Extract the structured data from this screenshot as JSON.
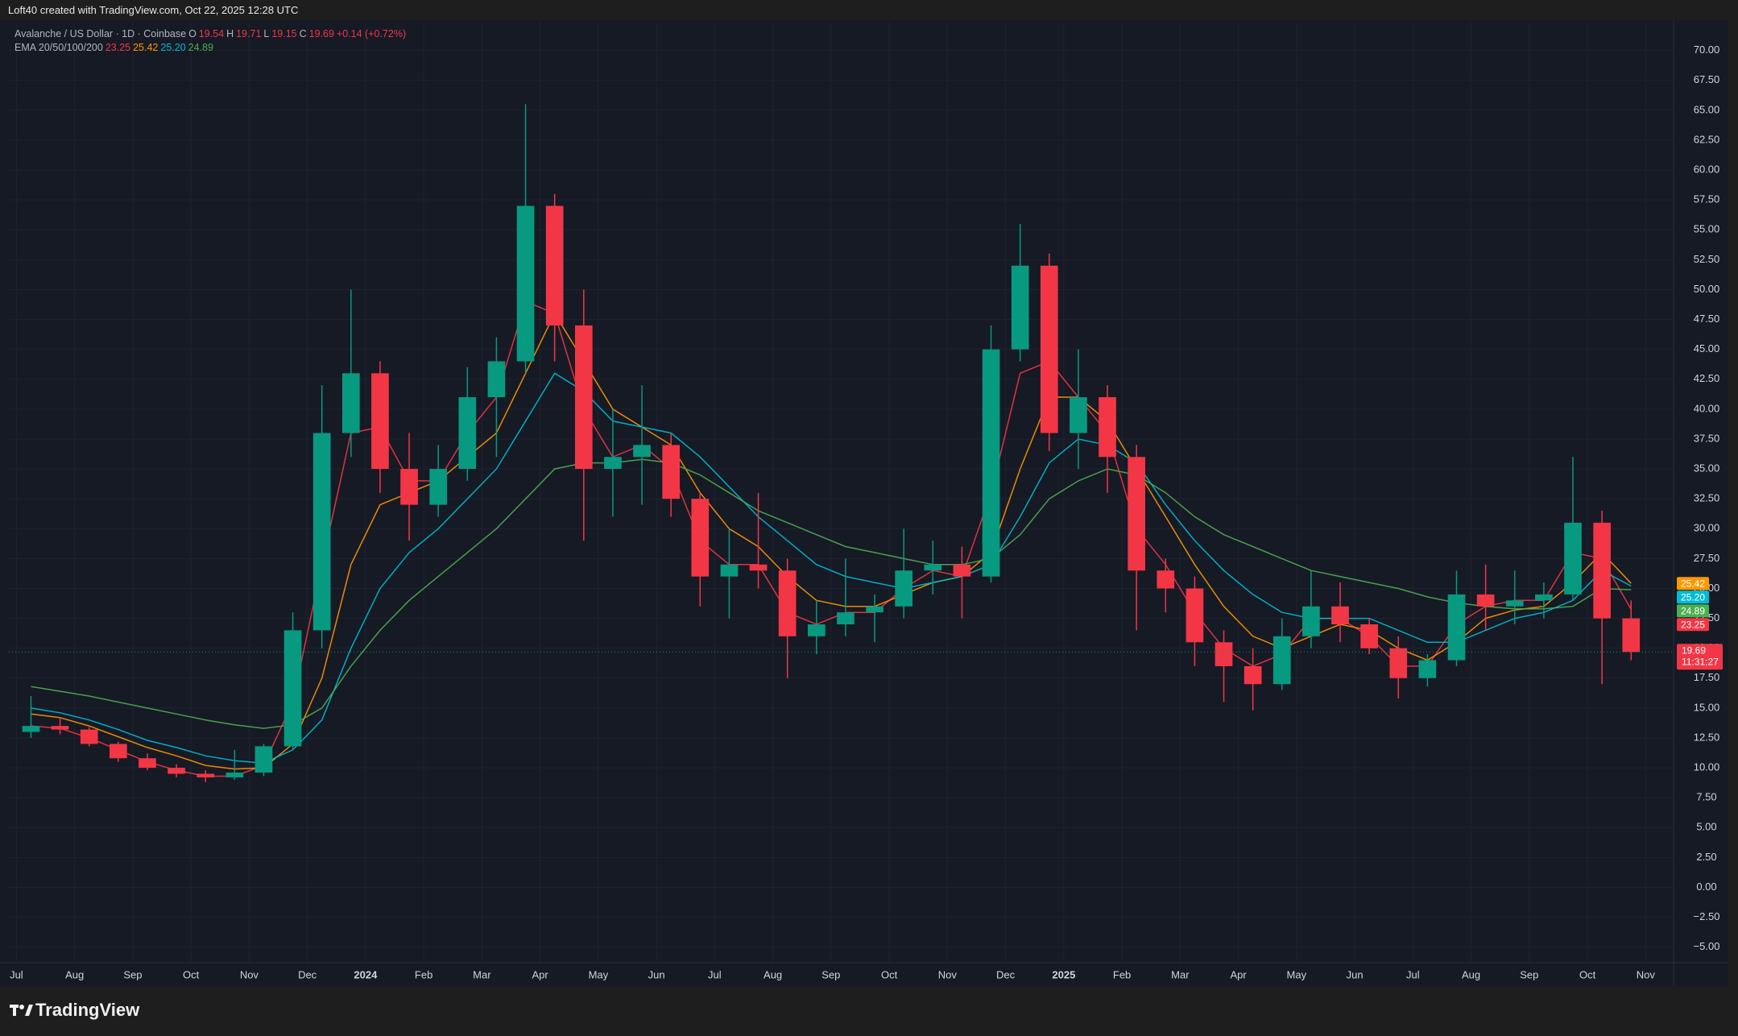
{
  "header": {
    "attribution": "Loft40 created with TradingView.com, Oct 22, 2025 12:28 UTC"
  },
  "chart_data": {
    "type": "candlestick",
    "symbol": "Avalanche / US Dollar · 1D · Coinbase",
    "legend_ohlc": [
      {
        "key": "O",
        "value": "19.54"
      },
      {
        "key": "H",
        "value": "19.71"
      },
      {
        "key": "L",
        "value": "19.15"
      },
      {
        "key": "C",
        "value": "19.69"
      }
    ],
    "change": "+0.14 (+0.72%)",
    "countdown": "11:31:27",
    "indicator": "EMA 20/50/100/200",
    "up_color": "#089981",
    "down_color": "#f23645",
    "x": [
      0.25,
      0.75,
      1.25,
      1.75,
      2.25,
      2.75,
      3.25,
      3.75,
      4.25,
      4.75,
      5.25,
      5.75,
      6.25,
      6.75,
      7.25,
      7.75,
      8.25,
      8.75,
      9.25,
      9.75,
      10.25,
      10.75,
      11.25,
      11.75,
      12.25,
      12.75,
      13.25,
      13.75,
      14.25,
      14.75,
      15.25,
      15.75,
      16.25,
      16.75,
      17.25,
      17.75,
      18.25,
      18.75,
      19.25,
      19.75,
      20.25,
      20.75,
      21.25,
      21.75,
      22.25,
      22.75,
      23.25,
      23.75,
      24.25,
      24.75,
      25.25,
      25.75,
      26.25,
      26.75,
      27.25,
      27.75
    ],
    "open": [
      13.0,
      13.5,
      13.2,
      12.0,
      10.8,
      10.0,
      9.5,
      9.2,
      9.6,
      11.8,
      21.5,
      38.0,
      43.0,
      35.0,
      32.0,
      35.0,
      41.0,
      44.0,
      57.0,
      47.0,
      35.0,
      36.0,
      37.0,
      32.5,
      26.0,
      27.0,
      26.5,
      21.0,
      22.0,
      23.0,
      23.5,
      26.5,
      27.0,
      26.0,
      45.0,
      52.0,
      38.0,
      41.0,
      36.0,
      26.5,
      25.0,
      20.5,
      18.5,
      17.0,
      21.0,
      23.5,
      22.0,
      20.0,
      17.5,
      19.0,
      24.5,
      23.5,
      24.0,
      24.5,
      30.5,
      22.5
    ],
    "high": [
      16.0,
      14.2,
      13.4,
      12.2,
      11.2,
      10.3,
      9.8,
      11.5,
      12.0,
      23.0,
      42.0,
      50.0,
      44.0,
      38.0,
      37.0,
      43.5,
      46.0,
      65.5,
      58.0,
      50.0,
      40.0,
      42.0,
      38.0,
      33.0,
      30.0,
      33.0,
      27.5,
      24.0,
      27.5,
      24.5,
      30.0,
      29.0,
      28.5,
      47.0,
      55.5,
      53.0,
      45.0,
      42.0,
      37.0,
      27.5,
      26.0,
      21.5,
      20.0,
      22.5,
      26.5,
      25.5,
      22.5,
      21.0,
      19.5,
      26.5,
      27.0,
      26.5,
      25.5,
      36.0,
      31.5,
      24.0
    ],
    "low": [
      12.5,
      12.8,
      11.8,
      10.5,
      9.8,
      9.2,
      8.8,
      9.0,
      9.3,
      11.5,
      20.0,
      36.0,
      33.0,
      29.0,
      31.0,
      34.0,
      36.0,
      43.0,
      44.0,
      29.0,
      31.0,
      32.0,
      31.0,
      23.5,
      22.5,
      25.0,
      17.5,
      19.5,
      21.0,
      20.5,
      22.5,
      24.5,
      22.5,
      25.5,
      44.0,
      36.5,
      35.0,
      33.0,
      21.5,
      23.0,
      18.5,
      15.5,
      14.8,
      16.5,
      20.0,
      20.5,
      19.5,
      15.8,
      16.8,
      18.5,
      21.5,
      22.0,
      22.5,
      24.0,
      17.0,
      19.0
    ],
    "close": [
      13.5,
      13.2,
      12.0,
      10.8,
      10.0,
      9.5,
      9.2,
      9.6,
      11.8,
      21.5,
      38.0,
      43.0,
      35.0,
      32.0,
      35.0,
      41.0,
      44.0,
      57.0,
      47.0,
      35.0,
      36.0,
      37.0,
      32.5,
      26.0,
      27.0,
      26.5,
      21.0,
      22.0,
      23.0,
      23.5,
      26.5,
      27.0,
      26.0,
      45.0,
      52.0,
      38.0,
      41.0,
      36.0,
      26.5,
      25.0,
      20.5,
      18.5,
      17.0,
      21.0,
      23.5,
      22.0,
      20.0,
      17.5,
      19.0,
      24.5,
      23.5,
      24.0,
      24.5,
      30.5,
      22.5,
      19.69
    ],
    "series": [
      {
        "color": "#f23645",
        "last_label": "23.25",
        "values": [
          13.5,
          13.3,
          12.5,
          11.5,
          10.5,
          9.8,
          9.3,
          9.3,
          10.2,
          15.5,
          27,
          38,
          38.5,
          34,
          34,
          38,
          41,
          49,
          48,
          40,
          36,
          37,
          35,
          29,
          27,
          27,
          23,
          22,
          23,
          23,
          25,
          26.5,
          26,
          33,
          43,
          44,
          41,
          38,
          30,
          27,
          23,
          20,
          18.5,
          19.5,
          22.5,
          22.5,
          21,
          18.5,
          18.5,
          22,
          23.5,
          24,
          24,
          28,
          27.5,
          23.25
        ]
      },
      {
        "color": "#ff9800",
        "last_label": "25.42",
        "values": [
          14.5,
          14.2,
          13.5,
          12.6,
          11.7,
          11.0,
          10.2,
          9.9,
          10.0,
          12.0,
          17.5,
          27,
          32,
          33,
          34,
          36,
          38,
          43,
          48,
          44,
          40,
          38.5,
          37,
          33,
          30,
          28.5,
          26,
          24,
          23.5,
          23.5,
          24.5,
          25.5,
          26,
          28,
          35,
          41,
          41,
          39,
          35,
          31,
          27,
          23.5,
          21,
          20,
          21,
          22,
          21.5,
          20,
          19,
          20.5,
          22.5,
          23.2,
          23.5,
          25.5,
          28,
          25.42
        ]
      },
      {
        "color": "#00bcd4",
        "last_label": "25.20",
        "values": [
          15.0,
          14.6,
          14.0,
          13.2,
          12.3,
          11.7,
          11.0,
          10.6,
          10.4,
          11.5,
          14,
          20,
          25,
          28,
          30,
          32.5,
          35,
          39,
          43,
          41.5,
          39,
          38.5,
          38,
          36,
          33.5,
          31,
          29,
          27,
          26,
          25.5,
          25,
          25.5,
          26,
          27,
          31,
          35.5,
          37.5,
          37,
          35.5,
          32,
          29,
          26.5,
          24.5,
          23,
          22.5,
          22.5,
          22.5,
          21.5,
          20.5,
          20.5,
          21.5,
          22.5,
          23,
          24,
          26.5,
          25.2
        ]
      },
      {
        "color": "#4caf50",
        "last_label": "24.89",
        "values": [
          16.8,
          16.4,
          16.0,
          15.5,
          15.0,
          14.5,
          14.0,
          13.6,
          13.3,
          13.6,
          15,
          18.5,
          21.5,
          24,
          26,
          28,
          30,
          32.5,
          35,
          35.5,
          35.5,
          35.8,
          35.5,
          34.5,
          33,
          31.5,
          30.5,
          29.5,
          28.5,
          28,
          27.5,
          27,
          27,
          27.5,
          29.5,
          32.5,
          34,
          35,
          34.5,
          33,
          31,
          29.5,
          28.5,
          27.5,
          26.5,
          26,
          25.5,
          25,
          24.3,
          23.8,
          23.5,
          23.3,
          23.3,
          23.5,
          25,
          24.89
        ]
      }
    ],
    "xlim": [
      -0.13,
      28.48
    ],
    "xticks": [
      {
        "value": 0,
        "label": "Jul"
      },
      {
        "value": 1,
        "label": "Aug"
      },
      {
        "value": 2,
        "label": "Sep"
      },
      {
        "value": 3,
        "label": "Oct"
      },
      {
        "value": 4,
        "label": "Nov"
      },
      {
        "value": 5,
        "label": "Dec"
      },
      {
        "value": 6,
        "label": "2024"
      },
      {
        "value": 7,
        "label": "Feb"
      },
      {
        "value": 8,
        "label": "Mar"
      },
      {
        "value": 9,
        "label": "Apr"
      },
      {
        "value": 10,
        "label": "May"
      },
      {
        "value": 11,
        "label": "Jun"
      },
      {
        "value": 12,
        "label": "Jul"
      },
      {
        "value": 13,
        "label": "Aug"
      },
      {
        "value": 14,
        "label": "Sep"
      },
      {
        "value": 15,
        "label": "Oct"
      },
      {
        "value": 16,
        "label": "Nov"
      },
      {
        "value": 17,
        "label": "Dec"
      },
      {
        "value": 18,
        "label": "2025"
      },
      {
        "value": 19,
        "label": "Feb"
      },
      {
        "value": 20,
        "label": "Mar"
      },
      {
        "value": 21,
        "label": "Apr"
      },
      {
        "value": 22,
        "label": "May"
      },
      {
        "value": 23,
        "label": "Jun"
      },
      {
        "value": 24,
        "label": "Jul"
      },
      {
        "value": 25,
        "label": "Aug"
      },
      {
        "value": 26,
        "label": "Sep"
      },
      {
        "value": 27,
        "label": "Oct"
      },
      {
        "value": 28,
        "label": "Nov"
      }
    ],
    "ylim": [
      -6.3,
      72.4
    ],
    "yticks": [
      {
        "value": -5,
        "label": "−5.00"
      },
      {
        "value": -2.5,
        "label": "−2.50"
      },
      {
        "value": 0,
        "label": "0.00"
      },
      {
        "value": 2.5,
        "label": "2.50"
      },
      {
        "value": 5,
        "label": "5.00"
      },
      {
        "value": 7.5,
        "label": "7.50"
      },
      {
        "value": 10,
        "label": "10.00"
      },
      {
        "value": 12.5,
        "label": "12.50"
      },
      {
        "value": 15,
        "label": "15.00"
      },
      {
        "value": 17.5,
        "label": "17.50"
      },
      {
        "value": 20,
        "label": "20.00"
      },
      {
        "value": 22.5,
        "label": "22.50"
      },
      {
        "value": 25,
        "label": "25.00"
      },
      {
        "value": 27.5,
        "label": "27.50"
      },
      {
        "value": 30,
        "label": "30.00"
      },
      {
        "value": 32.5,
        "label": "32.50"
      },
      {
        "value": 35,
        "label": "35.00"
      },
      {
        "value": 37.5,
        "label": "37.50"
      },
      {
        "value": 40,
        "label": "40.00"
      },
      {
        "value": 42.5,
        "label": "42.50"
      },
      {
        "value": 45,
        "label": "45.00"
      },
      {
        "value": 47.5,
        "label": "47.50"
      },
      {
        "value": 50,
        "label": "50.00"
      },
      {
        "value": 52.5,
        "label": "52.50"
      },
      {
        "value": 55,
        "label": "55.00"
      },
      {
        "value": 57.5,
        "label": "57.50"
      },
      {
        "value": 60,
        "label": "60.00"
      },
      {
        "value": 62.5,
        "label": "62.50"
      },
      {
        "value": 65,
        "label": "65.00"
      },
      {
        "value": 67.5,
        "label": "67.50"
      },
      {
        "value": 70,
        "label": "70.00"
      }
    ],
    "grid": true
  },
  "footer": {
    "brand": "TradingView"
  }
}
